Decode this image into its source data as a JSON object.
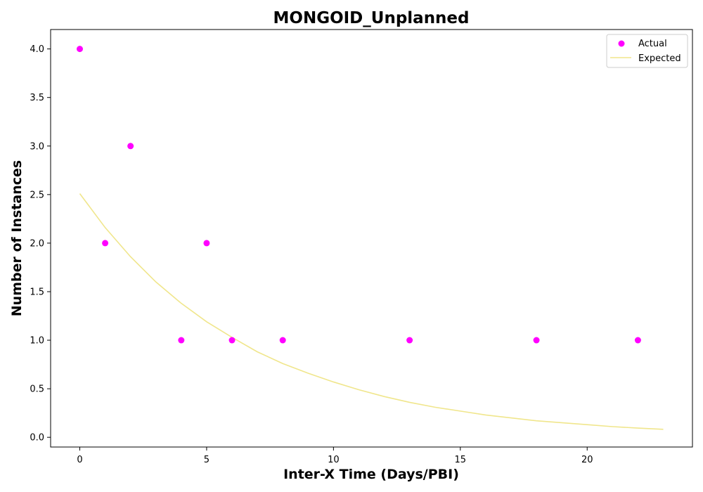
{
  "chart_data": {
    "type": "scatter",
    "title": "MONGOID_Unplanned",
    "xlabel": "Inter-X Time (Days/PBI)",
    "ylabel": "Number of Instances",
    "xlim": [
      -1.15,
      24.15
    ],
    "ylim": [
      -0.1,
      4.2
    ],
    "xticks": [
      0,
      5,
      10,
      15,
      20
    ],
    "xtick_labels": [
      "0",
      "5",
      "10",
      "15",
      "20"
    ],
    "yticks": [
      0.0,
      0.5,
      1.0,
      1.5,
      2.0,
      2.5,
      3.0,
      3.5,
      4.0
    ],
    "ytick_labels": [
      "0.0",
      "0.5",
      "1.0",
      "1.5",
      "2.0",
      "2.5",
      "3.0",
      "3.5",
      "4.0"
    ],
    "grid": false,
    "legend_position": "top-right",
    "series": [
      {
        "name": "Actual",
        "kind": "scatter",
        "color": "#ff00ff",
        "x": [
          0,
          1,
          2,
          4,
          5,
          6,
          8,
          13,
          18,
          22
        ],
        "y": [
          4,
          2,
          3,
          1,
          2,
          1,
          1,
          1,
          1,
          1
        ]
      },
      {
        "name": "Expected",
        "kind": "line",
        "color": "#f0e68c",
        "x": [
          0,
          1,
          2,
          3,
          4,
          5,
          6,
          7,
          8,
          9,
          10,
          11,
          12,
          13,
          14,
          15,
          16,
          17,
          18,
          19,
          20,
          21,
          22,
          23
        ],
        "y": [
          2.51,
          2.16,
          1.86,
          1.6,
          1.38,
          1.19,
          1.03,
          0.88,
          0.76,
          0.66,
          0.57,
          0.49,
          0.42,
          0.36,
          0.31,
          0.27,
          0.23,
          0.2,
          0.17,
          0.15,
          0.13,
          0.11,
          0.095,
          0.082
        ]
      }
    ]
  }
}
